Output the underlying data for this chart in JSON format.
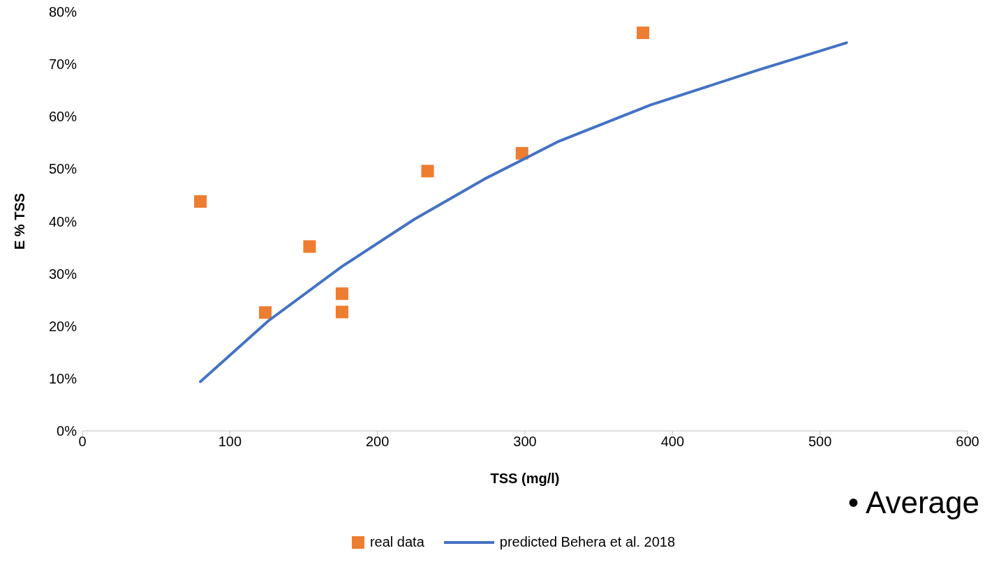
{
  "chart_data": {
    "type": "scatter",
    "xlabel": "TSS (mg/l)",
    "ylabel": "E % TSS",
    "xlim": [
      0,
      600
    ],
    "xticks": [
      0,
      100,
      200,
      300,
      400,
      500,
      600
    ],
    "ylim": [
      0,
      80
    ],
    "yticks": [
      {
        "value": 0,
        "label": "0%"
      },
      {
        "value": 10,
        "label": "10%"
      },
      {
        "value": 20,
        "label": "20%"
      },
      {
        "value": 30,
        "label": "30%"
      },
      {
        "value": 40,
        "label": "40%"
      },
      {
        "value": 50,
        "label": "50%"
      },
      {
        "value": 60,
        "label": "60%"
      },
      {
        "value": 70,
        "label": "70%"
      },
      {
        "value": 80,
        "label": "80%"
      }
    ],
    "grid": false,
    "legend": "bottom",
    "annotations": [
      "• Average"
    ],
    "series": [
      {
        "name": "real data",
        "marker": "square",
        "color": "#ed7d31",
        "x": [
          80,
          124,
          154,
          176,
          176,
          234,
          298,
          380
        ],
        "values": [
          43.8,
          22.6,
          35.2,
          26.2,
          22.7,
          49.6,
          53.0,
          76.0
        ]
      },
      {
        "name": "predicted Behera et al. 2018",
        "type": "line",
        "marker": "none",
        "line_style": "solid",
        "color": "#4472c4",
        "x": [
          80,
          126,
          176,
          225,
          272,
          323,
          385,
          457,
          518
        ],
        "values": [
          9.4,
          21.0,
          31.4,
          40.4,
          48.0,
          55.3,
          62.2,
          68.8,
          74.1
        ]
      }
    ]
  }
}
